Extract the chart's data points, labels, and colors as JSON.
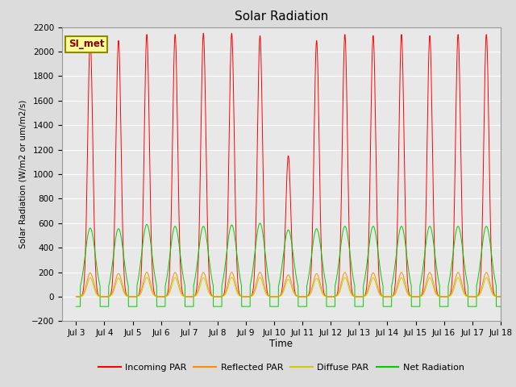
{
  "title": "Solar Radiation",
  "ylabel": "Solar Radiation (W/m2 or um/m2/s)",
  "xlabel": "Time",
  "ylim": [
    -200,
    2200
  ],
  "xlim": [
    2.5,
    18
  ],
  "yticks": [
    -200,
    0,
    200,
    400,
    600,
    800,
    1000,
    1200,
    1400,
    1600,
    1800,
    2000,
    2200
  ],
  "xtick_labels": [
    "Jul 3",
    "Jul 4",
    "Jul 5",
    "Jul 6",
    "Jul 7",
    "Jul 8",
    "Jul 9",
    "Jul 10",
    "Jul 11",
    "Jul 12",
    "Jul 13",
    "Jul 14",
    "Jul 15",
    "Jul 16",
    "Jul 17",
    "Jul 18"
  ],
  "xtick_positions": [
    3,
    4,
    5,
    6,
    7,
    8,
    9,
    10,
    11,
    12,
    13,
    14,
    15,
    16,
    17,
    18
  ],
  "colors": {
    "incoming": "#FF0000",
    "reflected": "#FF8C00",
    "diffuse": "#CCCC00",
    "net": "#00CC00"
  },
  "fig_background": "#DCDCDC",
  "plot_background": "#E8E8E8",
  "site_label": "SI_met",
  "legend_labels": [
    "Incoming PAR",
    "Reflected PAR",
    "Diffuse PAR",
    "Net Radiation"
  ],
  "day_peaks": {
    "3": [
      2100,
      560,
      195,
      155
    ],
    "4": [
      2090,
      555,
      190,
      152
    ],
    "5": [
      2140,
      590,
      200,
      158
    ],
    "6": [
      2140,
      575,
      198,
      156
    ],
    "7": [
      2150,
      575,
      198,
      156
    ],
    "8": [
      2150,
      585,
      200,
      158
    ],
    "9": [
      2130,
      600,
      200,
      158
    ],
    "10": [
      1150,
      545,
      178,
      142
    ],
    "11": [
      2090,
      555,
      188,
      150
    ],
    "12": [
      2140,
      575,
      198,
      158
    ],
    "13": [
      2130,
      575,
      195,
      155
    ],
    "14": [
      2140,
      575,
      198,
      155
    ],
    "15": [
      2130,
      575,
      198,
      155
    ],
    "16": [
      2140,
      575,
      198,
      155
    ],
    "17": [
      2140,
      575,
      198,
      155
    ]
  }
}
